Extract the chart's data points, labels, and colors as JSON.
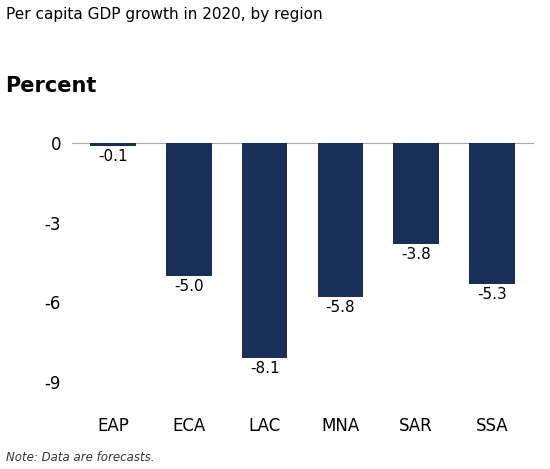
{
  "title": "Per capita GDP growth in 2020, by region",
  "ylabel": "Percent",
  "categories": [
    "EAP",
    "ECA",
    "LAC",
    "MNA",
    "SAR",
    "SSA"
  ],
  "values": [
    -0.1,
    -5.0,
    -8.1,
    -5.8,
    -3.8,
    -5.3
  ],
  "bar_color": "#1a2e5a",
  "ylim": [
    -9.8,
    0.8
  ],
  "yticks": [
    0,
    -3,
    -6,
    -9
  ],
  "note": "Note: Data are forecasts.",
  "value_labels": [
    "-0.1",
    "-5.0",
    "-8.1",
    "-5.8",
    "-3.8",
    "-5.3"
  ],
  "background_color": "#ffffff",
  "bar_width": 0.6,
  "title_fontsize": 11,
  "ylabel_fontsize": 15,
  "tick_fontsize": 12,
  "label_fontsize": 11,
  "note_fontsize": 8.5
}
